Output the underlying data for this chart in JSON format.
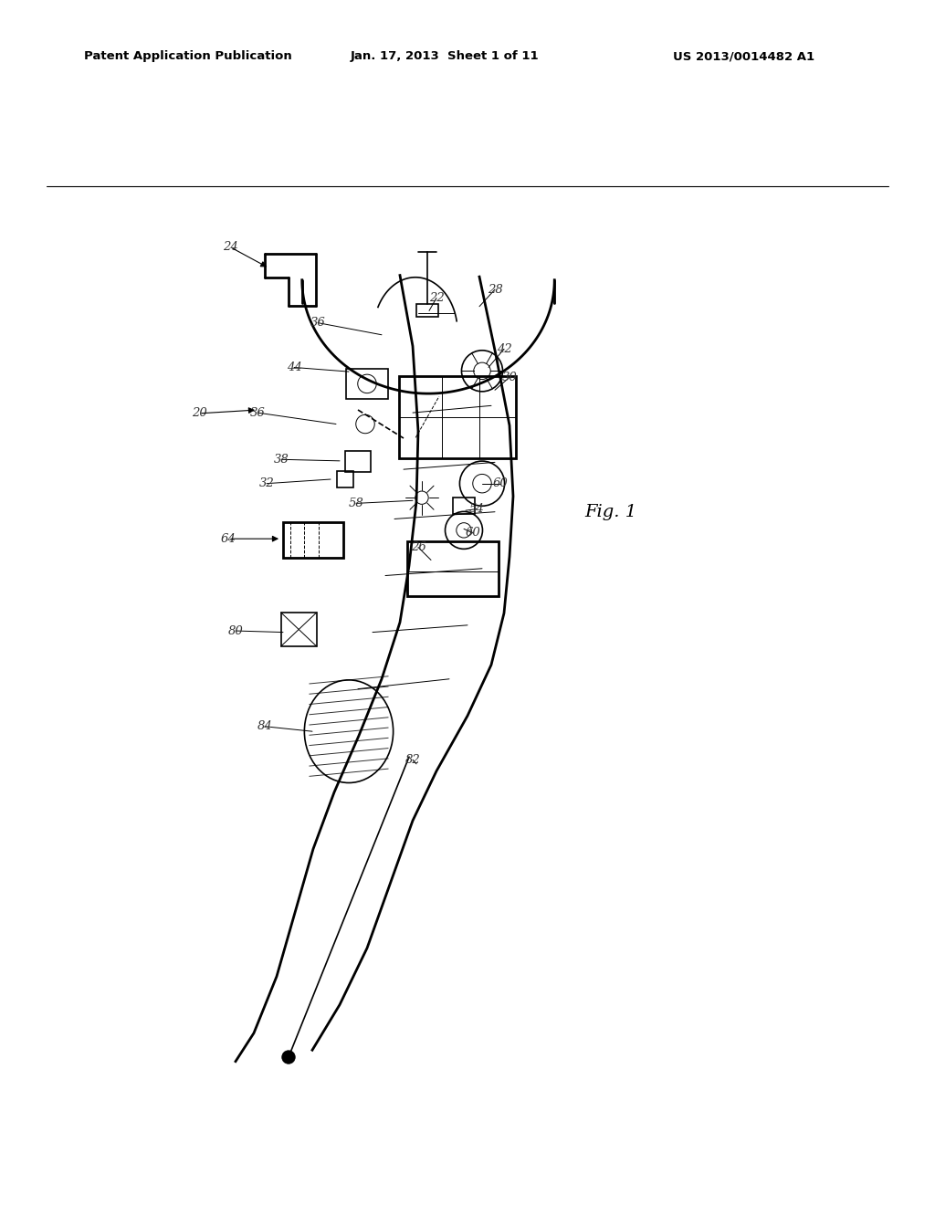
{
  "title_left": "Patent Application Publication",
  "title_center": "Jan. 17, 2013  Sheet 1 of 11",
  "title_right": "US 2013/0014482 A1",
  "fig_label": "Fig. 1",
  "background_color": "#ffffff",
  "line_color": "#000000",
  "label_color": "#333333"
}
